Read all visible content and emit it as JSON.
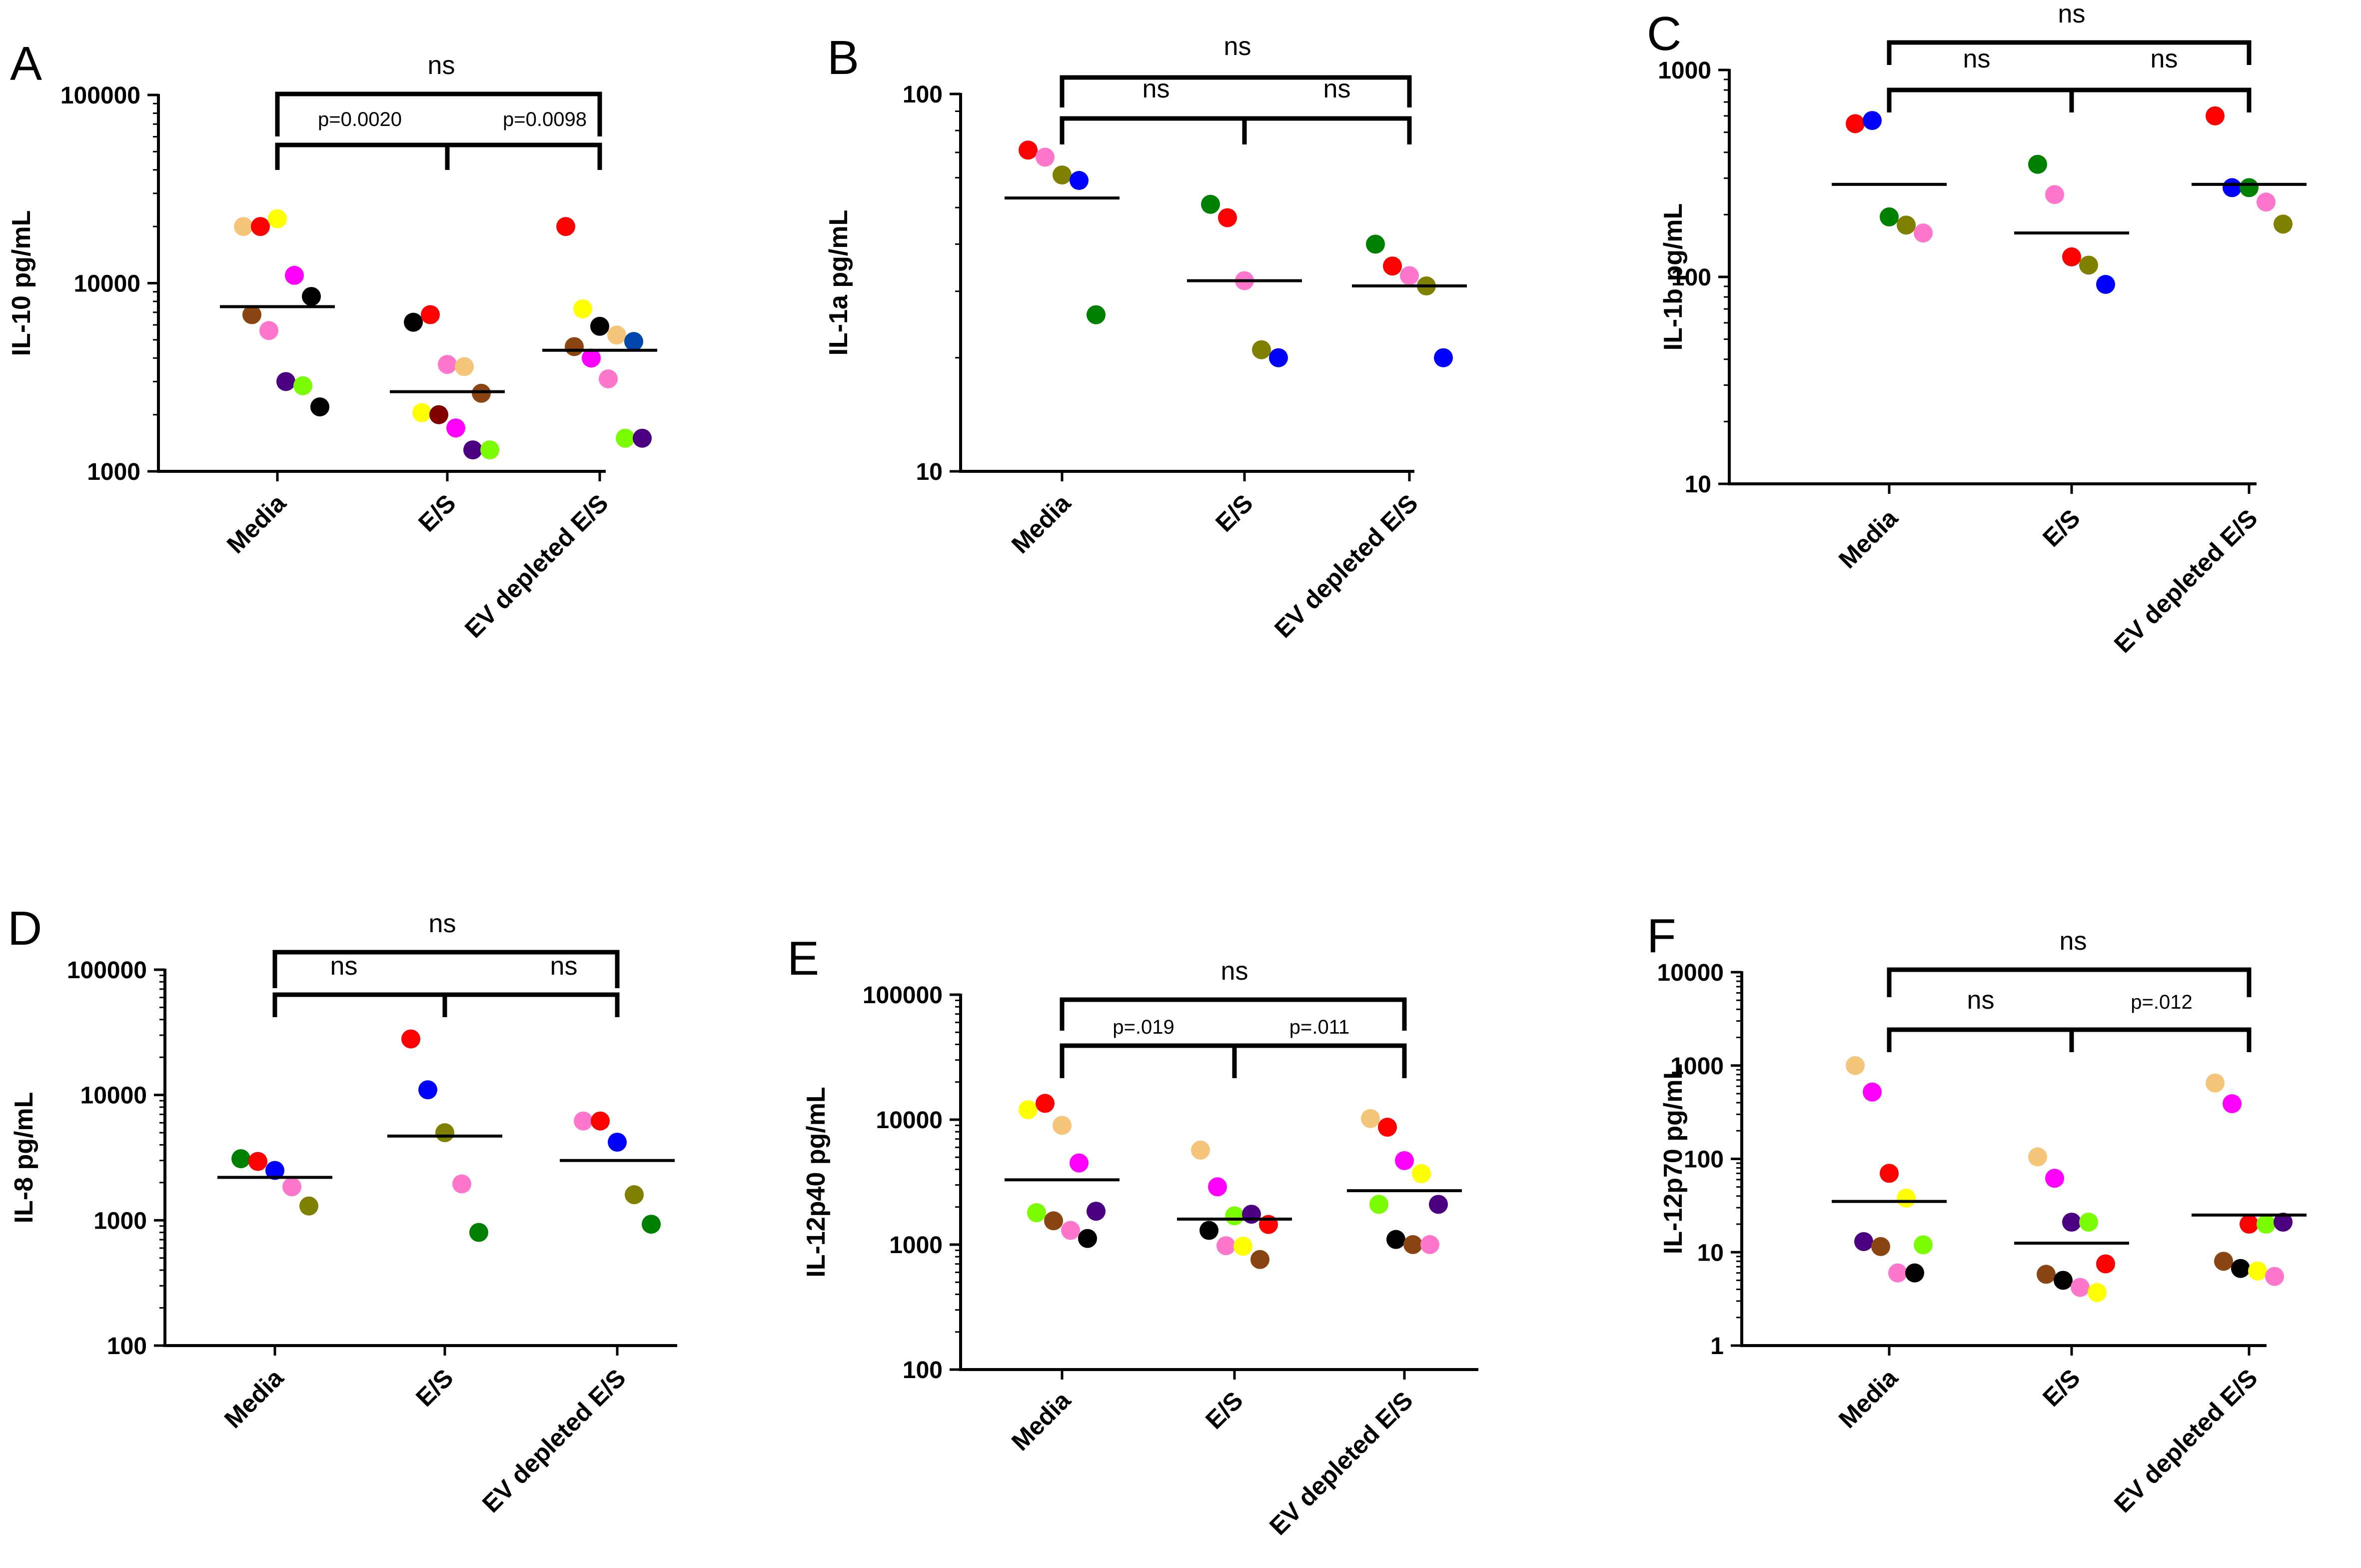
{
  "chart_data": [
    {
      "type": "scatter",
      "panel": "A",
      "ylabel": "IL-10 pg/mL",
      "yscale": "log",
      "ylim": [
        1000,
        100000
      ],
      "yticks": [
        "1000",
        "10000",
        "100000"
      ],
      "categories": [
        "Media",
        "E/S",
        "EV depleted E/S"
      ],
      "groups": [
        {
          "category": "Media",
          "median": 7500,
          "points": [
            {
              "color": "#F5C57A",
              "value": 20000
            },
            {
              "color": "#FF0000",
              "value": 20000
            },
            {
              "color": "#FFFF00",
              "value": 22000
            },
            {
              "color": "#FF00FF",
              "value": 11000
            },
            {
              "color": "#000000",
              "value": 8500
            },
            {
              "color": "#8B4513",
              "value": 6800
            },
            {
              "color": "#FF77CC",
              "value": 5600
            },
            {
              "color": "#4B0082",
              "value": 3000
            },
            {
              "color": "#7CFC00",
              "value": 2850
            },
            {
              "color": "#000000",
              "value": 2200
            }
          ]
        },
        {
          "category": "E/S",
          "median": 2650,
          "points": [
            {
              "color": "#000000",
              "value": 6200
            },
            {
              "color": "#FF0000",
              "value": 6800
            },
            {
              "color": "#FF77CC",
              "value": 3700
            },
            {
              "color": "#F5C57A",
              "value": 3600
            },
            {
              "color": "#8B4513",
              "value": 2600
            },
            {
              "color": "#FFFF00",
              "value": 2050
            },
            {
              "color": "#800000",
              "value": 2000
            },
            {
              "color": "#FF00FF",
              "value": 1700
            },
            {
              "color": "#4B0082",
              "value": 1300
            },
            {
              "color": "#7CFC00",
              "value": 1300
            }
          ]
        },
        {
          "category": "EV depleted E/S",
          "median": 4400,
          "points": [
            {
              "color": "#FF0000",
              "value": 20000
            },
            {
              "color": "#FFFF00",
              "value": 7300
            },
            {
              "color": "#000000",
              "value": 5900
            },
            {
              "color": "#F5C57A",
              "value": 5300
            },
            {
              "color": "#0047AB",
              "value": 4900
            },
            {
              "color": "#8B4513",
              "value": 4600
            },
            {
              "color": "#FF00FF",
              "value": 4000
            },
            {
              "color": "#FF77CC",
              "value": 3100
            },
            {
              "color": "#7CFC00",
              "value": 1500
            },
            {
              "color": "#4B0082",
              "value": 1500
            }
          ]
        }
      ],
      "comparisons": [
        {
          "from": 0,
          "to": 2,
          "label": "ns"
        },
        {
          "from": 0,
          "to": 1,
          "label": "p=0.0020"
        },
        {
          "from": 1,
          "to": 2,
          "label": "p=0.0098"
        }
      ]
    },
    {
      "type": "scatter",
      "panel": "B",
      "ylabel": "IL-1a pg/mL",
      "yscale": "log",
      "ylim": [
        10,
        100
      ],
      "yticks": [
        "10",
        "100"
      ],
      "categories": [
        "Media",
        "E/S",
        "EV depleted E/S"
      ],
      "groups": [
        {
          "category": "Media",
          "median": 53,
          "points": [
            {
              "color": "#FF0000",
              "value": 71
            },
            {
              "color": "#FF77CC",
              "value": 68
            },
            {
              "color": "#808000",
              "value": 61
            },
            {
              "color": "#0000FF",
              "value": 59
            },
            {
              "color": "#008000",
              "value": 26
            }
          ]
        },
        {
          "category": "E/S",
          "median": 32,
          "points": [
            {
              "color": "#008000",
              "value": 51
            },
            {
              "color": "#FF0000",
              "value": 47
            },
            {
              "color": "#FF77CC",
              "value": 32
            },
            {
              "color": "#808000",
              "value": 21
            },
            {
              "color": "#0000FF",
              "value": 20
            }
          ]
        },
        {
          "category": "EV depleted E/S",
          "median": 31,
          "points": [
            {
              "color": "#008000",
              "value": 40
            },
            {
              "color": "#FF0000",
              "value": 35
            },
            {
              "color": "#FF77CC",
              "value": 33
            },
            {
              "color": "#808000",
              "value": 31
            },
            {
              "color": "#0000FF",
              "value": 20
            }
          ]
        }
      ],
      "comparisons": [
        {
          "from": 0,
          "to": 2,
          "label": "ns"
        },
        {
          "from": 0,
          "to": 1,
          "label": "ns"
        },
        {
          "from": 1,
          "to": 2,
          "label": "ns"
        }
      ]
    },
    {
      "type": "scatter",
      "panel": "C",
      "ylabel": "IL-1b pg/mL",
      "yscale": "log",
      "ylim": [
        10,
        1000
      ],
      "yticks": [
        "10",
        "100",
        "1000"
      ],
      "categories": [
        "Media",
        "E/S",
        "EV depleted E/S"
      ],
      "groups": [
        {
          "category": "Media",
          "median": 280,
          "points": [
            {
              "color": "#FF0000",
              "value": 550
            },
            {
              "color": "#0000FF",
              "value": 570
            },
            {
              "color": "#008000",
              "value": 195
            },
            {
              "color": "#808000",
              "value": 178
            },
            {
              "color": "#FF77CC",
              "value": 163
            }
          ]
        },
        {
          "category": "E/S",
          "median": 163,
          "points": [
            {
              "color": "#008000",
              "value": 350
            },
            {
              "color": "#FF77CC",
              "value": 250
            },
            {
              "color": "#FF0000",
              "value": 125
            },
            {
              "color": "#808000",
              "value": 114
            },
            {
              "color": "#0000FF",
              "value": 92
            }
          ]
        },
        {
          "category": "EV depleted E/S",
          "median": 280,
          "points": [
            {
              "color": "#FF0000",
              "value": 600
            },
            {
              "color": "#0000FF",
              "value": 270
            },
            {
              "color": "#008000",
              "value": 270
            },
            {
              "color": "#FF77CC",
              "value": 230
            },
            {
              "color": "#808000",
              "value": 180
            }
          ]
        }
      ],
      "comparisons": [
        {
          "from": 0,
          "to": 2,
          "label": "ns"
        },
        {
          "from": 0,
          "to": 1,
          "label": "ns"
        },
        {
          "from": 1,
          "to": 2,
          "label": "ns"
        }
      ]
    },
    {
      "type": "scatter",
      "panel": "D",
      "ylabel": "IL-8 pg/mL",
      "yscale": "log",
      "ylim": [
        100,
        100000
      ],
      "yticks": [
        "100",
        "1000",
        "10000",
        "100000"
      ],
      "categories": [
        "Media",
        "E/S",
        "EV depleted E/S"
      ],
      "groups": [
        {
          "category": "Media",
          "median": 2200,
          "points": [
            {
              "color": "#008000",
              "value": 3100
            },
            {
              "color": "#FF0000",
              "value": 2950
            },
            {
              "color": "#0000FF",
              "value": 2500
            },
            {
              "color": "#FF77CC",
              "value": 1850
            },
            {
              "color": "#808000",
              "value": 1300
            }
          ]
        },
        {
          "category": "E/S",
          "median": 4700,
          "points": [
            {
              "color": "#FF0000",
              "value": 28000
            },
            {
              "color": "#0000FF",
              "value": 11000
            },
            {
              "color": "#808000",
              "value": 5000
            },
            {
              "color": "#FF77CC",
              "value": 1950
            },
            {
              "color": "#008000",
              "value": 800
            }
          ]
        },
        {
          "category": "EV depleted E/S",
          "median": 3000,
          "points": [
            {
              "color": "#FF77CC",
              "value": 6200
            },
            {
              "color": "#FF0000",
              "value": 6200
            },
            {
              "color": "#0000FF",
              "value": 4200
            },
            {
              "color": "#808000",
              "value": 1600
            },
            {
              "color": "#008000",
              "value": 930
            }
          ]
        }
      ],
      "comparisons": [
        {
          "from": 0,
          "to": 2,
          "label": "ns"
        },
        {
          "from": 0,
          "to": 1,
          "label": "ns"
        },
        {
          "from": 1,
          "to": 2,
          "label": "ns"
        }
      ]
    },
    {
      "type": "scatter",
      "panel": "E",
      "ylabel": "IL-12p40 pg/mL",
      "yscale": "log",
      "ylim": [
        100,
        100000
      ],
      "yticks": [
        "100",
        "1000",
        "10000",
        "100000"
      ],
      "categories": [
        "Media",
        "E/S",
        "EV depleted E/S"
      ],
      "groups": [
        {
          "category": "Media",
          "median": 3300,
          "points": [
            {
              "color": "#FFFF00",
              "value": 12000
            },
            {
              "color": "#FF0000",
              "value": 13500
            },
            {
              "color": "#F5C57A",
              "value": 9000
            },
            {
              "color": "#FF00FF",
              "value": 4500
            },
            {
              "color": "#4B0082",
              "value": 1850
            },
            {
              "color": "#7CFC00",
              "value": 1800
            },
            {
              "color": "#8B4513",
              "value": 1550
            },
            {
              "color": "#FF77CC",
              "value": 1300
            },
            {
              "color": "#000000",
              "value": 1120
            }
          ]
        },
        {
          "category": "E/S",
          "median": 1600,
          "points": [
            {
              "color": "#F5C57A",
              "value": 5700
            },
            {
              "color": "#FF00FF",
              "value": 2900
            },
            {
              "color": "#7CFC00",
              "value": 1700
            },
            {
              "color": "#4B0082",
              "value": 1750
            },
            {
              "color": "#FF0000",
              "value": 1450
            },
            {
              "color": "#000000",
              "value": 1300
            },
            {
              "color": "#FF77CC",
              "value": 980
            },
            {
              "color": "#FFFF00",
              "value": 970
            },
            {
              "color": "#8B4513",
              "value": 760
            }
          ]
        },
        {
          "category": "EV depleted E/S",
          "median": 2700,
          "points": [
            {
              "color": "#F5C57A",
              "value": 10200
            },
            {
              "color": "#FF0000",
              "value": 8700
            },
            {
              "color": "#FF00FF",
              "value": 4700
            },
            {
              "color": "#FFFF00",
              "value": 3700
            },
            {
              "color": "#4B0082",
              "value": 2100
            },
            {
              "color": "#7CFC00",
              "value": 2100
            },
            {
              "color": "#000000",
              "value": 1100
            },
            {
              "color": "#8B4513",
              "value": 1000
            },
            {
              "color": "#FF77CC",
              "value": 1000
            }
          ]
        }
      ],
      "comparisons": [
        {
          "from": 0,
          "to": 2,
          "label": "ns"
        },
        {
          "from": 0,
          "to": 1,
          "label": "p=.019"
        },
        {
          "from": 1,
          "to": 2,
          "label": "p=.011"
        }
      ]
    },
    {
      "type": "scatter",
      "panel": "F",
      "ylabel": "IL-12p70 pg/mL",
      "yscale": "log",
      "ylim": [
        1,
        10000
      ],
      "yticks": [
        "1",
        "10",
        "100",
        "1000",
        "10000"
      ],
      "categories": [
        "Media",
        "E/S",
        "EV depleted E/S"
      ],
      "groups": [
        {
          "category": "Media",
          "median": 35,
          "points": [
            {
              "color": "#F5C57A",
              "value": 1000
            },
            {
              "color": "#FF00FF",
              "value": 520
            },
            {
              "color": "#FF0000",
              "value": 70
            },
            {
              "color": "#FFFF00",
              "value": 38
            },
            {
              "color": "#7CFC00",
              "value": 12
            },
            {
              "color": "#4B0082",
              "value": 13
            },
            {
              "color": "#8B4513",
              "value": 11.5
            },
            {
              "color": "#FF77CC",
              "value": 6
            },
            {
              "color": "#000000",
              "value": 6
            }
          ]
        },
        {
          "category": "E/S",
          "median": 12.5,
          "points": [
            {
              "color": "#F5C57A",
              "value": 105
            },
            {
              "color": "#FF00FF",
              "value": 62
            },
            {
              "color": "#4B0082",
              "value": 21
            },
            {
              "color": "#7CFC00",
              "value": 21
            },
            {
              "color": "#FF0000",
              "value": 7.5
            },
            {
              "color": "#8B4513",
              "value": 5.8
            },
            {
              "color": "#000000",
              "value": 5.0
            },
            {
              "color": "#FF77CC",
              "value": 4.2
            },
            {
              "color": "#FFFF00",
              "value": 3.7
            }
          ]
        },
        {
          "category": "EV depleted E/S",
          "median": 25,
          "points": [
            {
              "color": "#F5C57A",
              "value": 650
            },
            {
              "color": "#FF00FF",
              "value": 390
            },
            {
              "color": "#FF0000",
              "value": 20
            },
            {
              "color": "#7CFC00",
              "value": 20
            },
            {
              "color": "#4B0082",
              "value": 21
            },
            {
              "color": "#8B4513",
              "value": 8
            },
            {
              "color": "#000000",
              "value": 6.7
            },
            {
              "color": "#FFFF00",
              "value": 6.3
            },
            {
              "color": "#FF77CC",
              "value": 5.5
            }
          ]
        }
      ],
      "comparisons": [
        {
          "from": 0,
          "to": 2,
          "label": "ns"
        },
        {
          "from": 0,
          "to": 1,
          "label": "ns"
        },
        {
          "from": 1,
          "to": 2,
          "label": "p=.012"
        }
      ]
    }
  ]
}
